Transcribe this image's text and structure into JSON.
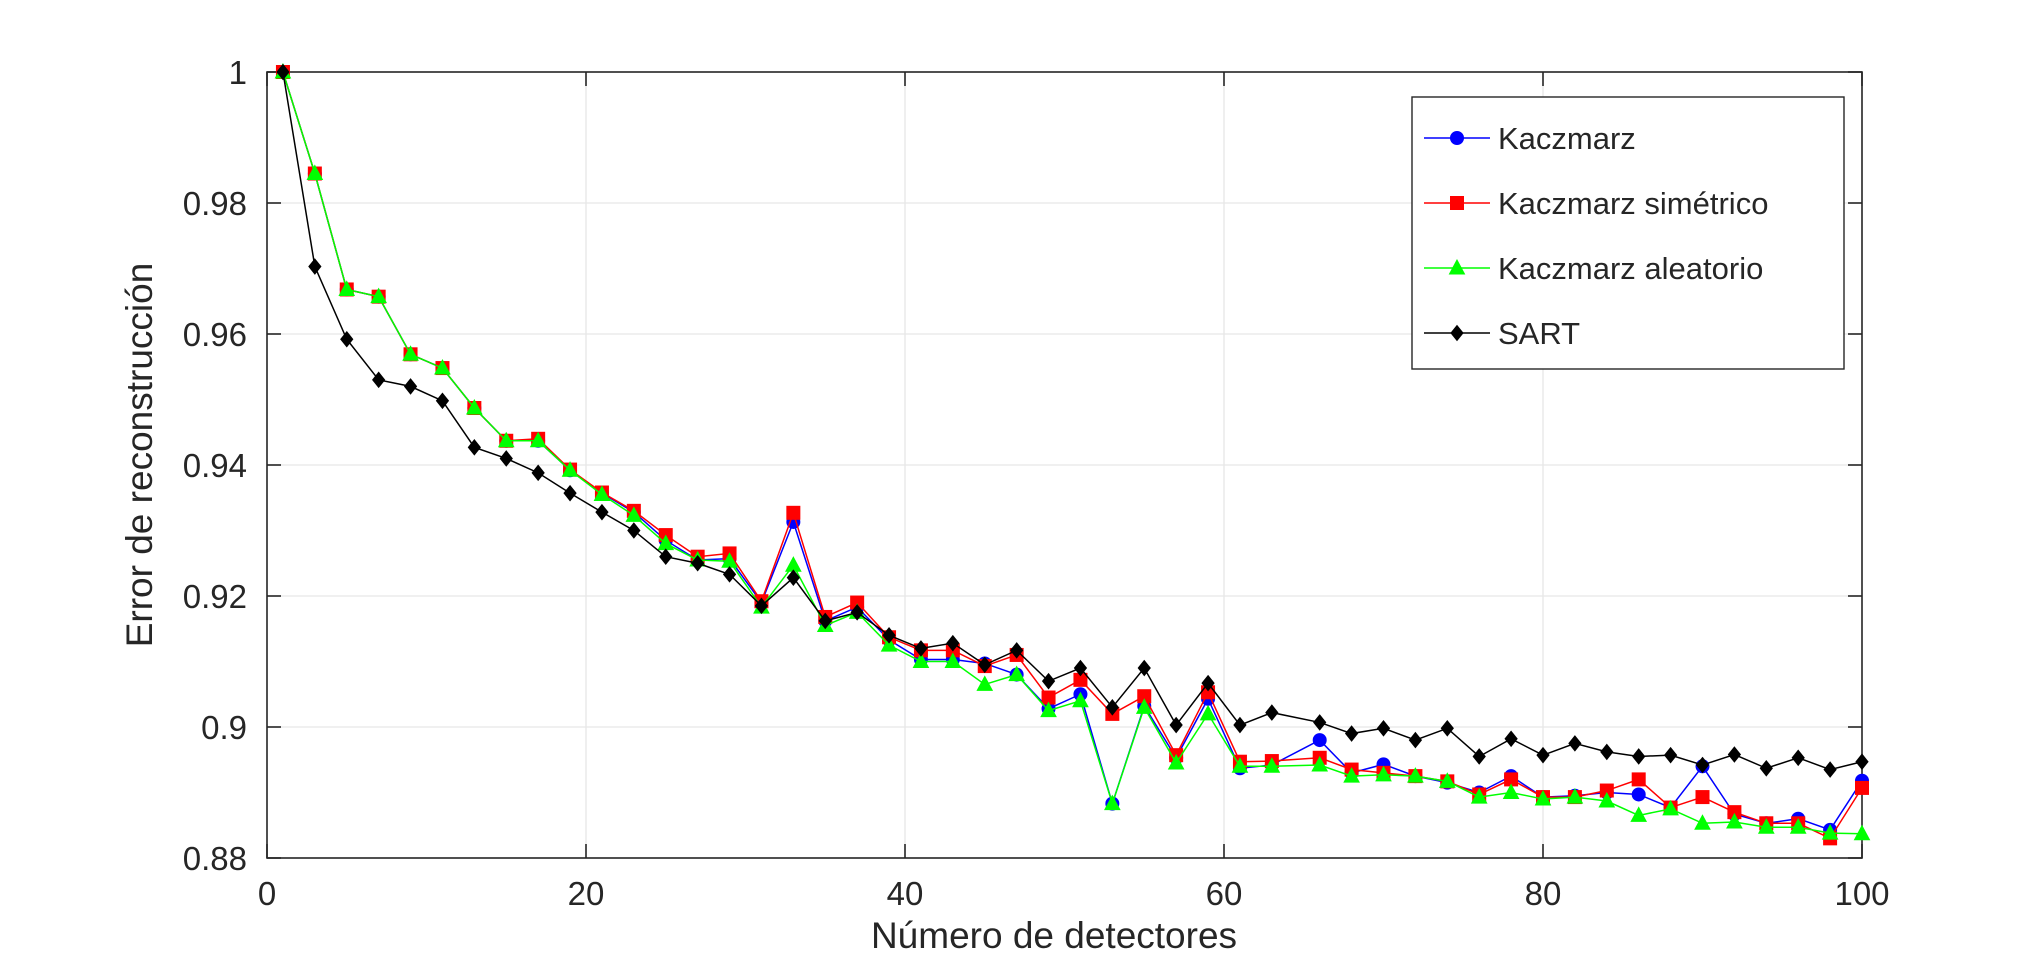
{
  "chart_data": {
    "type": "line",
    "xlabel": "Número de detectores",
    "ylabel": "Error de reconstrucción",
    "xlim": [
      0,
      100
    ],
    "ylim": [
      0.88,
      1.0
    ],
    "xticks": [
      0,
      20,
      40,
      60,
      80,
      100
    ],
    "yticks": [
      0.88,
      0.9,
      0.92,
      0.94,
      0.96,
      0.98,
      1.0
    ],
    "xtick_labels": [
      "0",
      "20",
      "40",
      "60",
      "80",
      "100"
    ],
    "ytick_labels": [
      "0.88",
      "0.9",
      "0.92",
      "0.94",
      "0.96",
      "0.98",
      "1"
    ],
    "grid": true,
    "legend_position": "top-right",
    "x": [
      1,
      3,
      5,
      7,
      9,
      11,
      13,
      15,
      17,
      19,
      21,
      23,
      25,
      27,
      29,
      31,
      33,
      35,
      37,
      39,
      41,
      43,
      45,
      47,
      49,
      51,
      53,
      55,
      57,
      59,
      61,
      63,
      66,
      68,
      70,
      72,
      74,
      76,
      78,
      80,
      82,
      84,
      86,
      88,
      90,
      92,
      94,
      96,
      98,
      100
    ],
    "series": [
      {
        "name": "Kaczmarz",
        "color": "#0000ff",
        "marker": "circle",
        "values": [
          1.0,
          0.9845,
          0.9668,
          0.9657,
          0.9569,
          0.9548,
          0.9487,
          0.9437,
          0.9437,
          0.9392,
          0.9357,
          0.9328,
          0.9285,
          0.9255,
          0.9257,
          0.919,
          0.9313,
          0.9162,
          0.9183,
          0.9133,
          0.9103,
          0.9103,
          0.9097,
          0.908,
          0.9028,
          0.905,
          0.8883,
          0.9032,
          0.8953,
          0.9043,
          0.8937,
          0.8942,
          0.898,
          0.893,
          0.8943,
          0.8925,
          0.8915,
          0.89,
          0.8925,
          0.8893,
          0.8895,
          0.89,
          0.8897,
          0.8877,
          0.894,
          0.8867,
          0.8853,
          0.886,
          0.8843,
          0.8918
        ]
      },
      {
        "name": "Kaczmarz simétrico",
        "color": "#ff0000",
        "marker": "square",
        "values": [
          1.0,
          0.9845,
          0.9668,
          0.9657,
          0.9569,
          0.9548,
          0.9487,
          0.9437,
          0.944,
          0.9393,
          0.9358,
          0.933,
          0.9293,
          0.926,
          0.9265,
          0.9192,
          0.9327,
          0.9168,
          0.919,
          0.9137,
          0.9117,
          0.9117,
          0.9093,
          0.911,
          0.9045,
          0.9072,
          0.902,
          0.9047,
          0.8957,
          0.9053,
          0.8947,
          0.8948,
          0.8953,
          0.8935,
          0.893,
          0.8925,
          0.8917,
          0.8897,
          0.892,
          0.8893,
          0.8893,
          0.8903,
          0.892,
          0.8877,
          0.8893,
          0.887,
          0.8853,
          0.8853,
          0.883,
          0.8907
        ]
      },
      {
        "name": "Kaczmarz aleatorio",
        "color": "#00ff00",
        "marker": "triangle",
        "values": [
          1.0,
          0.9845,
          0.9668,
          0.9657,
          0.9569,
          0.9548,
          0.9487,
          0.9437,
          0.9437,
          0.9392,
          0.9355,
          0.9323,
          0.928,
          0.9255,
          0.9253,
          0.9183,
          0.9247,
          0.9155,
          0.9175,
          0.9125,
          0.91,
          0.91,
          0.9065,
          0.908,
          0.9025,
          0.904,
          0.8883,
          0.903,
          0.8945,
          0.902,
          0.894,
          0.894,
          0.8942,
          0.8925,
          0.8927,
          0.8925,
          0.8917,
          0.8893,
          0.89,
          0.889,
          0.8893,
          0.8887,
          0.8865,
          0.8875,
          0.8853,
          0.8855,
          0.8847,
          0.8847,
          0.8838,
          0.8837
        ]
      },
      {
        "name": "SART",
        "color": "#000000",
        "marker": "diamond",
        "values": [
          1.0,
          0.9703,
          0.9592,
          0.953,
          0.952,
          0.9498,
          0.9427,
          0.941,
          0.9388,
          0.9357,
          0.9328,
          0.93,
          0.926,
          0.925,
          0.9233,
          0.9185,
          0.9228,
          0.9162,
          0.9175,
          0.914,
          0.912,
          0.9128,
          0.9095,
          0.9117,
          0.907,
          0.909,
          0.903,
          0.909,
          0.9003,
          0.9067,
          0.9003,
          0.9022,
          0.9007,
          0.899,
          0.8998,
          0.898,
          0.8998,
          0.8955,
          0.8982,
          0.8957,
          0.8975,
          0.8962,
          0.8955,
          0.8957,
          0.8942,
          0.8958,
          0.8937,
          0.8953,
          0.8935,
          0.8947
        ]
      }
    ]
  }
}
